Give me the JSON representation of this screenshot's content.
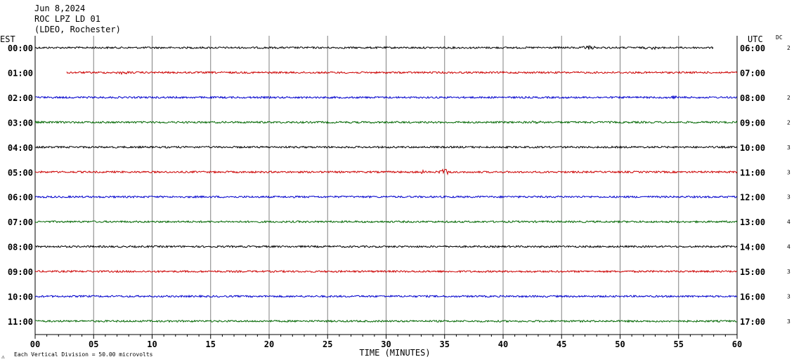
{
  "header": {
    "date": "Jun 8,2024",
    "station": "ROC LPZ LD 01",
    "network": "(LDEO, Rochester)"
  },
  "left_axis_title": "EST",
  "right_axis_title": "UTC",
  "dc_title": "DC",
  "footer": {
    "xlabel": "TIME (MINUTES)",
    "note": "Each Vertical Division =   50.00 microvolts",
    "corner_mark": "⚠"
  },
  "colors": {
    "background": "#ffffff",
    "grid": "#808080",
    "axis": "#000000",
    "trace_cycle": [
      "#000000",
      "#cc0000",
      "#0000cc",
      "#006600"
    ]
  },
  "chart_data": {
    "type": "line",
    "subtype": "helicorder",
    "x_unit": "minutes",
    "xlim": [
      0,
      60
    ],
    "x_ticks": [
      "00",
      "05",
      "10",
      "15",
      "20",
      "25",
      "30",
      "35",
      "40",
      "45",
      "50",
      "55",
      "60"
    ],
    "grid_vertical_every_minutes": 5,
    "rows": [
      {
        "local": "00:00",
        "utc": "06:00",
        "dc": "2",
        "color": "#000000",
        "x_start": 0,
        "x_end": 58,
        "events": [
          {
            "at": 47.5,
            "amp": 2.0
          },
          {
            "at": 52.8,
            "amp": 1.6
          }
        ]
      },
      {
        "local": "01:00",
        "utc": "07:00",
        "dc": "",
        "color": "#cc0000",
        "x_start": 2.7,
        "x_end": 60,
        "events": [
          {
            "at": 7.5,
            "amp": 1.5
          }
        ]
      },
      {
        "local": "02:00",
        "utc": "08:00",
        "dc": "2",
        "color": "#0000cc",
        "x_start": 0,
        "x_end": 60,
        "events": [
          {
            "at": 54.5,
            "amp": 1.5
          }
        ]
      },
      {
        "local": "03:00",
        "utc": "09:00",
        "dc": "2",
        "color": "#006600",
        "x_start": 0,
        "x_end": 60,
        "events": [
          {
            "at": 43,
            "amp": 1.4
          }
        ]
      },
      {
        "local": "04:00",
        "utc": "10:00",
        "dc": "3",
        "color": "#000000",
        "x_start": 0,
        "x_end": 60,
        "events": []
      },
      {
        "local": "05:00",
        "utc": "11:00",
        "dc": "3",
        "color": "#cc0000",
        "x_start": 0,
        "x_end": 60,
        "events": [
          {
            "at": 35.1,
            "amp": 4.0
          },
          {
            "at": 33,
            "amp": 1.6
          }
        ]
      },
      {
        "local": "06:00",
        "utc": "12:00",
        "dc": "3",
        "color": "#0000cc",
        "x_start": 0,
        "x_end": 60,
        "events": []
      },
      {
        "local": "07:00",
        "utc": "13:00",
        "dc": "4",
        "color": "#006600",
        "x_start": 0,
        "x_end": 60,
        "events": []
      },
      {
        "local": "08:00",
        "utc": "14:00",
        "dc": "4",
        "color": "#000000",
        "x_start": 0,
        "x_end": 60,
        "events": []
      },
      {
        "local": "09:00",
        "utc": "15:00",
        "dc": "3",
        "color": "#cc0000",
        "x_start": 0,
        "x_end": 60,
        "events": []
      },
      {
        "local": "10:00",
        "utc": "16:00",
        "dc": "3",
        "color": "#0000cc",
        "x_start": 0,
        "x_end": 60,
        "events": []
      },
      {
        "local": "11:00",
        "utc": "17:00",
        "dc": "3",
        "color": "#006600",
        "x_start": 0,
        "x_end": 60,
        "events": []
      }
    ]
  }
}
